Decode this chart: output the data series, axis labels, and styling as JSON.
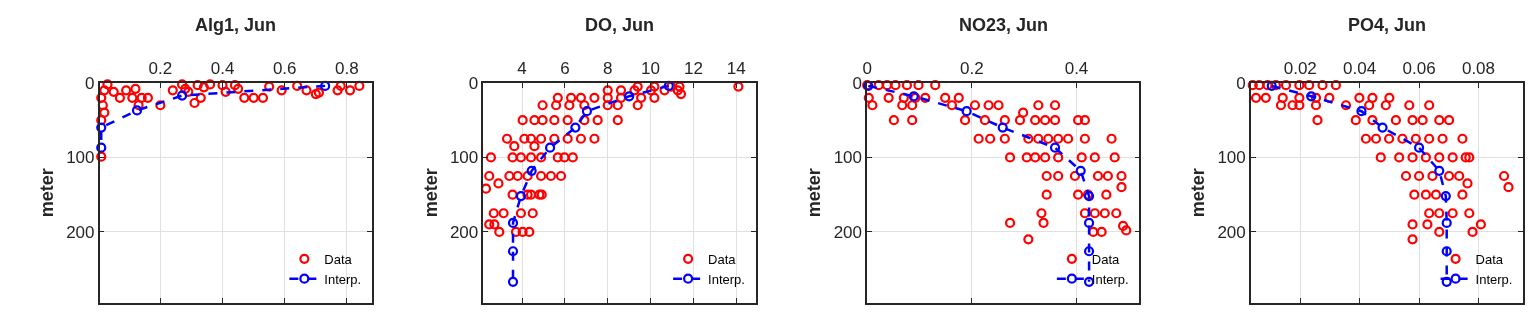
{
  "chart_data": [
    {
      "type": "scatter",
      "title": "Alg1, Jun",
      "ylabel": "meter",
      "xlim": [
        0.005,
        0.88
      ],
      "xticks": [
        0.2,
        0.4,
        0.6,
        0.8
      ],
      "ylim": [
        295,
        0
      ],
      "yticks": [
        0,
        100,
        200
      ],
      "grid": true,
      "legend": "bottom right",
      "marker": "circle",
      "series": [
        {
          "name": "Data",
          "color": "#ff0000",
          "x": [
            0.01,
            0.01,
            0.02,
            0.015,
            0.01,
            0.02,
            0.03,
            0.05,
            0.07,
            0.09,
            0.11,
            0.12,
            0.13,
            0.14,
            0.16,
            0.2,
            0.24,
            0.27,
            0.28,
            0.29,
            0.31,
            0.33,
            0.32,
            0.34,
            0.36,
            0.4,
            0.41,
            0.44,
            0.45,
            0.47,
            0.5,
            0.53,
            0.55,
            0.59,
            0.64,
            0.67,
            0.7,
            0.71,
            0.77,
            0.78,
            0.81,
            0.84
          ],
          "values": [
            99,
            50,
            40,
            30,
            20,
            10,
            2,
            12,
            20,
            10,
            20,
            8,
            30,
            20,
            20,
            30,
            10,
            2,
            8,
            12,
            27,
            20,
            3,
            6,
            2,
            3,
            12,
            3,
            8,
            20,
            20,
            20,
            5,
            10,
            4,
            10,
            15,
            13,
            10,
            4,
            10,
            4
          ]
        },
        {
          "name": "Interp.",
          "type": "line",
          "color": "#0000ff",
          "line_style": "dashed",
          "x": [
            0.73,
            0.27,
            0.125,
            0.01,
            0.01
          ],
          "values": [
            4,
            17,
            37,
            60,
            87
          ]
        }
      ]
    },
    {
      "type": "scatter",
      "title": "DO, Jun",
      "ylabel": "meter",
      "xlim": [
        2.2,
        14.9
      ],
      "xticks": [
        4,
        6,
        8,
        10,
        12,
        14
      ],
      "ylim": [
        295,
        0
      ],
      "yticks": [
        0,
        100,
        200
      ],
      "grid": true,
      "legend": "bottom right",
      "marker": "circle",
      "series": [
        {
          "name": "Data",
          "color": "#ff0000",
          "x": [
            2.94,
            3.72,
            4.03,
            4.34,
            2.47,
            2.71,
            2.68,
            3.14,
            3.95,
            4.5,
            3.56,
            4.26,
            4.42,
            4.81,
            4.92,
            2.32,
            2.9,
            2.47,
            3.41,
            3.8,
            4.26,
            4.89,
            5.35,
            5.82,
            2.55,
            3.56,
            3.95,
            4.42,
            4.89,
            5.67,
            5.98,
            6.37,
            3.64,
            4.58,
            3.3,
            4.11,
            4.42,
            4.89,
            5.51,
            6.13,
            6.75,
            7.38,
            4.03,
            4.58,
            4.96,
            5.51,
            6.13,
            6.91,
            7.53,
            8.47,
            4.96,
            5.59,
            6.21,
            6.91,
            8.0,
            8.47,
            9.4,
            5.67,
            6.29,
            6.75,
            7.38,
            8.0,
            8.62,
            9.56,
            10.18,
            8.0,
            8.62,
            9.25,
            10.02,
            10.65,
            11.27,
            9.4,
            10.18,
            10.96,
            11.35,
            14.1,
            11.42
          ],
          "values": [
            200,
            200,
            200,
            200,
            190,
            190,
            175,
            175,
            175,
            175,
            150,
            150,
            150,
            150,
            150,
            142,
            135,
            125,
            125,
            125,
            125,
            125,
            125,
            125,
            100,
            100,
            100,
            100,
            100,
            100,
            100,
            100,
            85,
            85,
            75,
            75,
            75,
            75,
            75,
            75,
            75,
            75,
            50,
            50,
            50,
            50,
            50,
            50,
            50,
            50,
            30,
            30,
            30,
            30,
            30,
            30,
            30,
            20,
            20,
            20,
            20,
            20,
            20,
            20,
            20,
            10,
            10,
            10,
            10,
            10,
            10,
            5,
            5,
            5,
            5,
            5,
            15
          ]
        },
        {
          "name": "Interp.",
          "type": "line",
          "color": "#0000ff",
          "line_style": "dashed",
          "x": [
            10.85,
            9.0,
            7.03,
            6.49,
            5.31,
            4.45,
            3.95,
            3.58,
            3.58,
            3.58
          ],
          "values": [
            4,
            18,
            38,
            60,
            87,
            118,
            152,
            188,
            226,
            267
          ]
        }
      ]
    },
    {
      "type": "scatter",
      "title": "NO23, Jun",
      "ylabel": "meter",
      "xlim": [
        0,
        0.52
      ],
      "xticks": [
        0,
        0.2,
        0.4
      ],
      "ylim": [
        295,
        0
      ],
      "yticks": [
        0,
        100,
        200
      ],
      "grid": true,
      "legend": "bottom right",
      "marker": "circle",
      "series": [
        {
          "name": "Data",
          "color": "#ff0000",
          "x": [
            0.0,
            0.022,
            0.038,
            0.054,
            0.076,
            0.098,
            0.13,
            0.003,
            0.041,
            0.07,
            0.092,
            0.111,
            0.149,
            0.175,
            0.01,
            0.067,
            0.086,
            0.162,
            0.206,
            0.232,
            0.251,
            0.327,
            0.359,
            0.051,
            0.086,
            0.187,
            0.225,
            0.263,
            0.292,
            0.321,
            0.34,
            0.359,
            0.403,
            0.416,
            0.298,
            0.213,
            0.235,
            0.263,
            0.308,
            0.327,
            0.346,
            0.365,
            0.384,
            0.416,
            0.467,
            0.273,
            0.305,
            0.321,
            0.34,
            0.365,
            0.41,
            0.435,
            0.473,
            0.343,
            0.365,
            0.397,
            0.441,
            0.46,
            0.486,
            0.343,
            0.403,
            0.422,
            0.457,
            0.486,
            0.333,
            0.416,
            0.435,
            0.454,
            0.476,
            0.273,
            0.337,
            0.432,
            0.448,
            0.489,
            0.495,
            0.308
          ],
          "values": [
            3,
            3,
            3,
            3,
            3,
            3,
            3,
            20,
            20,
            20,
            20,
            20,
            20,
            20,
            30,
            30,
            30,
            30,
            30,
            30,
            30,
            30,
            30,
            50,
            50,
            50,
            50,
            50,
            50,
            50,
            50,
            50,
            50,
            50,
            40,
            75,
            75,
            75,
            75,
            75,
            75,
            75,
            75,
            75,
            75,
            100,
            100,
            100,
            100,
            100,
            100,
            100,
            100,
            125,
            125,
            125,
            125,
            125,
            125,
            150,
            150,
            150,
            150,
            140,
            175,
            175,
            175,
            175,
            175,
            188,
            188,
            200,
            200,
            192,
            198,
            210
          ]
        },
        {
          "name": "Interp.",
          "type": "line",
          "color": "#0000ff",
          "line_style": "dashed",
          "x": [
            0.002,
            0.089,
            0.19,
            0.259,
            0.359,
            0.408,
            0.424,
            0.424,
            0.424,
            0.424
          ],
          "values": [
            4,
            18,
            38,
            60,
            87,
            118,
            152,
            188,
            226,
            267
          ]
        }
      ]
    },
    {
      "type": "scatter",
      "title": "PO4, Jun",
      "ylabel": "meter",
      "xlim": [
        0.0034,
        0.095
      ],
      "xticks": [
        0.02,
        0.04,
        0.06,
        0.08
      ],
      "ylim": [
        295,
        0
      ],
      "yticks": [
        0,
        100,
        200
      ],
      "grid": true,
      "legend": "bottom right",
      "marker": "circle",
      "series": [
        {
          "name": "Data",
          "color": "#ff0000",
          "x": [
            0.004,
            0.0062,
            0.009,
            0.0118,
            0.0152,
            0.0197,
            0.023,
            0.0275,
            0.032,
            0.0051,
            0.0084,
            0.0141,
            0.0197,
            0.0253,
            0.0298,
            0.0399,
            0.0443,
            0.05,
            0.0135,
            0.0174,
            0.0197,
            0.0253,
            0.0354,
            0.0432,
            0.0488,
            0.0567,
            0.0634,
            0.0258,
            0.0387,
            0.0443,
            0.0522,
            0.0578,
            0.0612,
            0.0668,
            0.0701,
            0.0421,
            0.0455,
            0.0499,
            0.0544,
            0.0589,
            0.0634,
            0.0679,
            0.0746,
            0.0471,
            0.0533,
            0.0578,
            0.0623,
            0.0668,
            0.0713,
            0.0757,
            0.0769,
            0.0556,
            0.06,
            0.0645,
            0.0701,
            0.0735,
            0.0886,
            0.0901,
            0.0584,
            0.0623,
            0.0657,
            0.0746,
            0.0763,
            0.0634,
            0.0668,
            0.0713,
            0.0769,
            0.0578,
            0.0628,
            0.0808,
            0.0668,
            0.078,
            0.0578
          ],
          "values": [
            3,
            3,
            3,
            3,
            3,
            3,
            3,
            3,
            3,
            20,
            20,
            20,
            20,
            20,
            20,
            20,
            20,
            20,
            30,
            30,
            30,
            30,
            30,
            30,
            30,
            30,
            30,
            50,
            50,
            50,
            50,
            50,
            50,
            50,
            50,
            75,
            75,
            75,
            75,
            75,
            75,
            75,
            75,
            100,
            100,
            100,
            100,
            100,
            100,
            100,
            100,
            125,
            125,
            125,
            125,
            125,
            125,
            140,
            150,
            150,
            150,
            150,
            135,
            175,
            175,
            175,
            175,
            190,
            190,
            190,
            200,
            200,
            210
          ]
        },
        {
          "name": "Interp.",
          "type": "line",
          "color": "#0000ff",
          "line_style": "dashed",
          "x": [
            0.0104,
            0.0237,
            0.0406,
            0.0477,
            0.06,
            0.0668,
            0.069,
            0.0693,
            0.0693,
            0.0693
          ],
          "values": [
            4,
            18,
            38,
            60,
            87,
            118,
            152,
            188,
            226,
            267
          ]
        }
      ]
    }
  ]
}
